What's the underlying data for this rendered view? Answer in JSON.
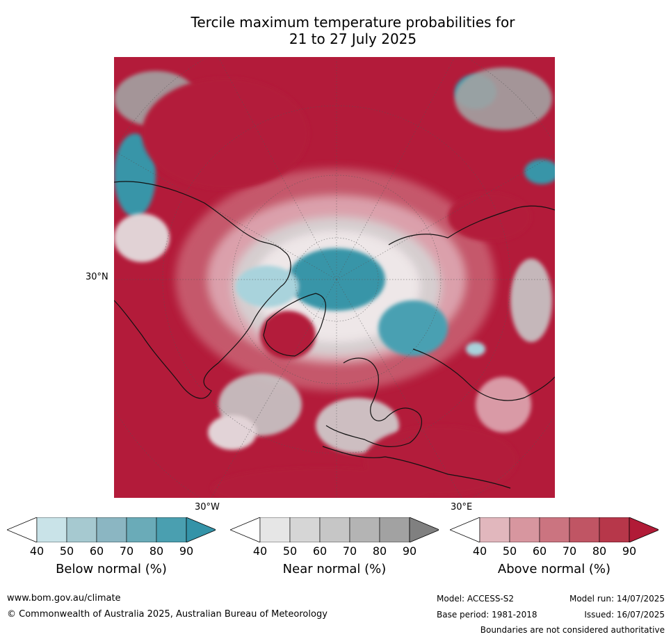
{
  "title_line1": "Tercile maximum temperature probabilities for",
  "title_line2": "21 to 27 July 2025",
  "map": {
    "lat_label": "30°N",
    "lon_label_left": "30°W",
    "lon_label_right": "30°E",
    "colors": {
      "above_high": "#b31b3a",
      "above_mid": "#c75b6e",
      "above_low": "#dea8b2",
      "near": "#c8c8c8",
      "near_dark": "#a3a3a3",
      "below_low": "#a9d3dc",
      "below_high": "#3795a8",
      "neutral": "#ffffff"
    }
  },
  "legends": [
    {
      "title": "Below normal (%)",
      "ticks": [
        "40",
        "50",
        "60",
        "70",
        "80",
        "90"
      ],
      "colors": [
        "#c9e3e8",
        "#a6c9d0",
        "#8bb6c2",
        "#6aabb8",
        "#4a9fb0",
        "#3493a8"
      ]
    },
    {
      "title": "Near normal (%)",
      "ticks": [
        "40",
        "50",
        "60",
        "70",
        "80",
        "90"
      ],
      "colors": [
        "#e6e6e6",
        "#d6d6d6",
        "#c6c6c6",
        "#b4b4b4",
        "#a2a2a2",
        "#808080"
      ]
    },
    {
      "title": "Above normal (%)",
      "ticks": [
        "40",
        "50",
        "60",
        "70",
        "80",
        "90"
      ],
      "colors": [
        "#e1b7bd",
        "#d7969f",
        "#cb7480",
        "#c05564",
        "#b7374a",
        "#b11b37"
      ]
    }
  ],
  "footer": {
    "website": "www.bom.gov.au/climate",
    "copyright": "© Commonwealth of Australia 2025, Australian Bureau of Meteorology",
    "model": "Model: ACCESS-S2",
    "model_run": "Model run: 14/07/2025",
    "base_period": "Base period: 1981-2018",
    "issued": "Issued: 16/07/2025",
    "disclaimer": "Boundaries are not considered authoritative"
  }
}
